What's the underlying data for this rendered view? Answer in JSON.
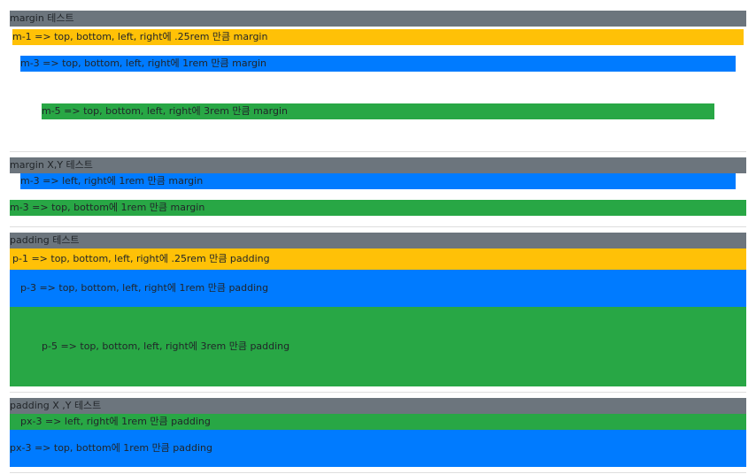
{
  "colors": {
    "secondary": "#6c757d",
    "warning": "#ffc107",
    "primary": "#007bff",
    "success": "#28a745"
  },
  "sections": [
    {
      "title": "margin 테스트",
      "items": [
        "m-1 => top, bottom, left, right에 .25rem 만큼 margin",
        "m-3 => top, bottom, left, right에 1rem 만큼 margin",
        "m-5 => top, bottom, left, right에 3rem 만큼 margin"
      ]
    },
    {
      "title": "margin X,Y 테스트",
      "items": [
        "m-3 => left, right에 1rem 만큼 margin",
        "m-3 => top, bottom에 1rem 만큼 margin"
      ]
    },
    {
      "title": "padding 테스트",
      "items": [
        "p-1 => top, bottom, left, right에 .25rem 만큼 padding",
        "p-3 => top, bottom, left, right에 1rem 만큼 padding",
        "p-5 => top, bottom, left, right에 3rem 만큼 padding"
      ]
    },
    {
      "title": "padding X ,Y 테스트",
      "items": [
        "px-3 => left, right에 1rem 만큼 padding",
        "px-3 => top, bottom에 1rem 만큼 padding"
      ]
    }
  ]
}
